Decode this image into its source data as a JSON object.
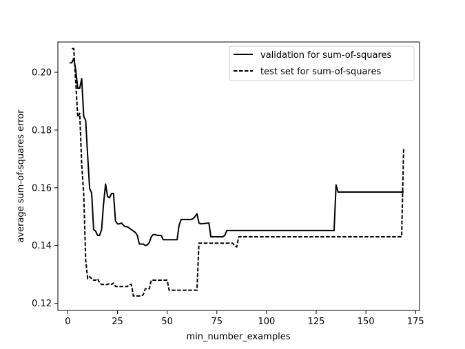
{
  "chart_data": {
    "type": "line",
    "title": "",
    "xlabel": "min_number_examples",
    "ylabel": "average sum-of-squares error",
    "xlim": [
      -5,
      177
    ],
    "ylim": [
      0.1175,
      0.2105
    ],
    "xticks": [
      0,
      25,
      50,
      75,
      100,
      125,
      150,
      175
    ],
    "yticks": [
      0.12,
      0.14,
      0.16,
      0.18,
      0.2
    ],
    "ytick_labels": [
      "0.12",
      "0.14",
      "0.16",
      "0.18",
      "0.20"
    ],
    "grid": false,
    "legend_position": "top-right",
    "series": [
      {
        "name": "validation for sum-of-squares",
        "style": "solid",
        "color": "#000000",
        "points": [
          [
            1,
            0.2033
          ],
          [
            2,
            0.2033
          ],
          [
            3,
            0.2048
          ],
          [
            4,
            0.2008
          ],
          [
            5,
            0.1945
          ],
          [
            6,
            0.1945
          ],
          [
            7,
            0.1978
          ],
          [
            8,
            0.1848
          ],
          [
            9,
            0.1833
          ],
          [
            10,
            0.171
          ],
          [
            11,
            0.1597
          ],
          [
            12,
            0.1582
          ],
          [
            13,
            0.1455
          ],
          [
            14,
            0.145
          ],
          [
            15,
            0.1435
          ],
          [
            16,
            0.1435
          ],
          [
            17,
            0.1455
          ],
          [
            18,
            0.1545
          ],
          [
            19,
            0.1613
          ],
          [
            20,
            0.157
          ],
          [
            21,
            0.1565
          ],
          [
            22,
            0.158
          ],
          [
            23,
            0.158
          ],
          [
            24,
            0.1485
          ],
          [
            25,
            0.1475
          ],
          [
            26,
            0.1475
          ],
          [
            27,
            0.1478
          ],
          [
            28,
            0.147
          ],
          [
            29,
            0.1465
          ],
          [
            30,
            0.1465
          ],
          [
            31,
            0.146
          ],
          [
            32,
            0.1455
          ],
          [
            33,
            0.145
          ],
          [
            34,
            0.1445
          ],
          [
            35,
            0.1435
          ],
          [
            36,
            0.1405
          ],
          [
            37,
            0.1405
          ],
          [
            38,
            0.1405
          ],
          [
            39,
            0.14
          ],
          [
            40,
            0.1402
          ],
          [
            41,
            0.141
          ],
          [
            42,
            0.143
          ],
          [
            43,
            0.1438
          ],
          [
            44,
            0.1438
          ],
          [
            45,
            0.1435
          ],
          [
            47,
            0.1435
          ],
          [
            48,
            0.142
          ],
          [
            55,
            0.142
          ],
          [
            56,
            0.147
          ],
          [
            57,
            0.149
          ],
          [
            62,
            0.149
          ],
          [
            63,
            0.1493
          ],
          [
            64,
            0.15
          ],
          [
            65,
            0.151
          ],
          [
            66,
            0.1478
          ],
          [
            67,
            0.1475
          ],
          [
            71,
            0.1478
          ],
          [
            72,
            0.143
          ],
          [
            78,
            0.143
          ],
          [
            79,
            0.1435
          ],
          [
            80,
            0.1452
          ],
          [
            134,
            0.1452
          ],
          [
            135,
            0.161
          ],
          [
            136,
            0.1585
          ],
          [
            169,
            0.1585
          ]
        ]
      },
      {
        "name": "test set for sum-of-squares",
        "style": "dashed",
        "color": "#000000",
        "points": [
          [
            2,
            0.2082
          ],
          [
            3,
            0.2082
          ],
          [
            4,
            0.1965
          ],
          [
            5,
            0.1845
          ],
          [
            6,
            0.1858
          ],
          [
            7,
            0.168
          ],
          [
            8,
            0.158
          ],
          [
            9,
            0.135
          ],
          [
            10,
            0.1285
          ],
          [
            11,
            0.1292
          ],
          [
            12,
            0.1285
          ],
          [
            13,
            0.128
          ],
          [
            14,
            0.128
          ],
          [
            15,
            0.1285
          ],
          [
            16,
            0.127
          ],
          [
            17,
            0.1265
          ],
          [
            18,
            0.1265
          ],
          [
            20,
            0.1265
          ],
          [
            21,
            0.1268
          ],
          [
            22,
            0.1265
          ],
          [
            23,
            0.127
          ],
          [
            24,
            0.1258
          ],
          [
            30,
            0.1258
          ],
          [
            31,
            0.1265
          ],
          [
            32,
            0.1265
          ],
          [
            33,
            0.1225
          ],
          [
            36,
            0.1225
          ],
          [
            37,
            0.1225
          ],
          [
            38,
            0.123
          ],
          [
            39,
            0.125
          ],
          [
            41,
            0.125
          ],
          [
            42,
            0.128
          ],
          [
            50,
            0.128
          ],
          [
            51,
            0.1245
          ],
          [
            65,
            0.1245
          ],
          [
            66,
            0.1408
          ],
          [
            82,
            0.1408
          ],
          [
            83,
            0.1408
          ],
          [
            84,
            0.1398
          ],
          [
            85,
            0.1395
          ],
          [
            86,
            0.143
          ],
          [
            168,
            0.143
          ],
          [
            169,
            0.1735
          ]
        ]
      }
    ]
  }
}
